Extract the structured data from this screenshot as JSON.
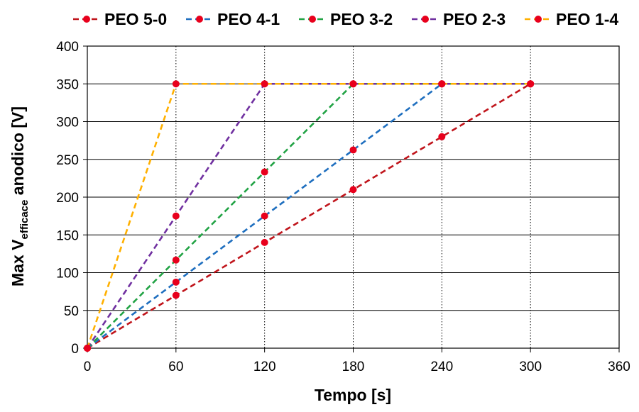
{
  "chart_data": {
    "type": "line",
    "title": "",
    "xlabel": "Tempo [s]",
    "ylabel": {
      "prefix": "Max V",
      "subscript": "efficace",
      "suffix": " anodico [V]"
    },
    "xlim": [
      0,
      360
    ],
    "ylim": [
      0,
      400
    ],
    "xticks": [
      "0",
      "60",
      "120",
      "180",
      "240",
      "300",
      "360"
    ],
    "yticks": [
      "0",
      "50",
      "100",
      "150",
      "200",
      "250",
      "300",
      "350",
      "400"
    ],
    "grid": {
      "x": true,
      "y": true
    },
    "legend_position": "top",
    "marker_color": "#e8001c",
    "series": [
      {
        "name": "PEO 5-0",
        "color": "#c0141b",
        "x": [
          0,
          60,
          120,
          180,
          240,
          300
        ],
        "y": [
          0,
          70,
          140,
          210,
          280,
          350
        ]
      },
      {
        "name": "PEO 4-1",
        "color": "#1f6fbf",
        "x": [
          0,
          60,
          120,
          180,
          240,
          300
        ],
        "y": [
          0,
          87.5,
          175,
          262.5,
          350,
          350
        ]
      },
      {
        "name": "PEO 3-2",
        "color": "#22a345",
        "x": [
          0,
          60,
          120,
          180,
          240,
          300
        ],
        "y": [
          0,
          116.7,
          233.3,
          350,
          350,
          350
        ]
      },
      {
        "name": "PEO 2-3",
        "color": "#7030a0",
        "x": [
          0,
          60,
          120,
          180,
          240,
          300
        ],
        "y": [
          0,
          175,
          350,
          350,
          350,
          350
        ]
      },
      {
        "name": "PEO 1-4",
        "color": "#ffb000",
        "x": [
          0,
          60,
          120,
          180,
          240,
          300
        ],
        "y": [
          0,
          350,
          350,
          350,
          350,
          350
        ]
      }
    ]
  }
}
